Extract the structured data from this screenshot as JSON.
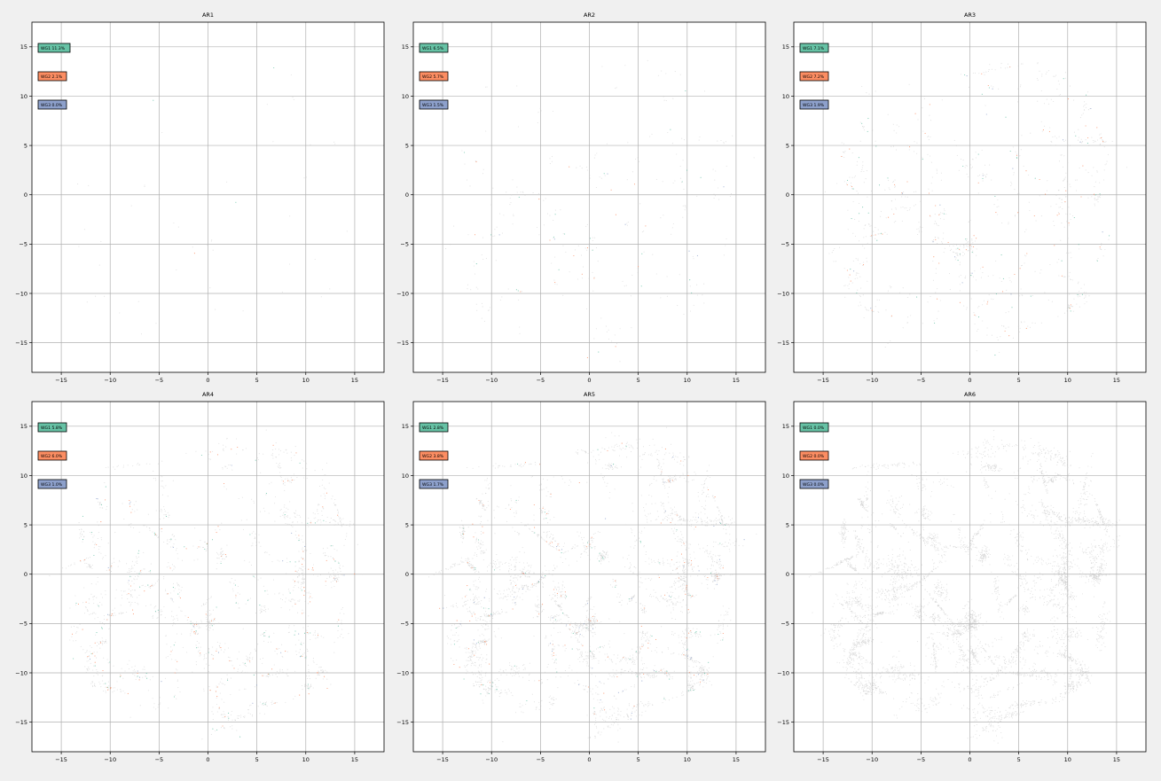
{
  "chart_data": [
    {
      "type": "scatter",
      "title": "AR1",
      "xlim": [
        -18,
        18
      ],
      "ylim": [
        -18,
        17.5
      ],
      "xticks": [
        -15,
        -10,
        -5,
        0,
        5,
        10,
        15
      ],
      "yticks": [
        -15,
        -10,
        -5,
        0,
        5,
        10,
        15
      ],
      "grid": true,
      "density": 0.01,
      "legend": [
        {
          "label": "WG1 11.3%",
          "color": "#66c2a5"
        },
        {
          "label": "WG2 2.1%",
          "color": "#fc8d62"
        },
        {
          "label": "WG3 0.0%",
          "color": "#8da0cb"
        }
      ],
      "series": [
        {
          "label": "WG1",
          "color": "#66c2a5",
          "fraction": 0.113
        },
        {
          "label": "WG2",
          "color": "#fc8d62",
          "fraction": 0.021
        },
        {
          "label": "WG3",
          "color": "#8da0cb",
          "fraction": 0.0
        }
      ]
    },
    {
      "type": "scatter",
      "title": "AR2",
      "xlim": [
        -18,
        18
      ],
      "ylim": [
        -18,
        17.5
      ],
      "xticks": [
        -15,
        -10,
        -5,
        0,
        5,
        10,
        15
      ],
      "yticks": [
        -15,
        -10,
        -5,
        0,
        5,
        10,
        15
      ],
      "grid": true,
      "density": 0.06,
      "legend": [
        {
          "label": "WG1 6.5%",
          "color": "#66c2a5"
        },
        {
          "label": "WG2 5.7%",
          "color": "#fc8d62"
        },
        {
          "label": "WG3 1.5%",
          "color": "#8da0cb"
        }
      ],
      "series": [
        {
          "label": "WG1",
          "color": "#66c2a5",
          "fraction": 0.065
        },
        {
          "label": "WG2",
          "color": "#fc8d62",
          "fraction": 0.057
        },
        {
          "label": "WG3",
          "color": "#8da0cb",
          "fraction": 0.015
        }
      ]
    },
    {
      "type": "scatter",
      "title": "AR3",
      "xlim": [
        -18,
        18
      ],
      "ylim": [
        -18,
        17.5
      ],
      "xticks": [
        -15,
        -10,
        -5,
        0,
        5,
        10,
        15
      ],
      "yticks": [
        -15,
        -10,
        -5,
        0,
        5,
        10,
        15
      ],
      "grid": true,
      "density": 0.18,
      "legend": [
        {
          "label": "WG1 7.1%",
          "color": "#66c2a5"
        },
        {
          "label": "WG2 7.2%",
          "color": "#fc8d62"
        },
        {
          "label": "WG3 1.9%",
          "color": "#8da0cb"
        }
      ],
      "series": [
        {
          "label": "WG1",
          "color": "#66c2a5",
          "fraction": 0.071
        },
        {
          "label": "WG2",
          "color": "#fc8d62",
          "fraction": 0.072
        },
        {
          "label": "WG3",
          "color": "#8da0cb",
          "fraction": 0.019
        }
      ]
    },
    {
      "type": "scatter",
      "title": "AR4",
      "xlim": [
        -18,
        18
      ],
      "ylim": [
        -18,
        17.5
      ],
      "xticks": [
        -15,
        -10,
        -5,
        0,
        5,
        10,
        15
      ],
      "yticks": [
        -15,
        -10,
        -5,
        0,
        5,
        10,
        15
      ],
      "grid": true,
      "density": 0.35,
      "legend": [
        {
          "label": "WG1 5.8%",
          "color": "#66c2a5"
        },
        {
          "label": "WG2 6.0%",
          "color": "#fc8d62"
        },
        {
          "label": "WG3 1.0%",
          "color": "#8da0cb"
        }
      ],
      "series": [
        {
          "label": "WG1",
          "color": "#66c2a5",
          "fraction": 0.058
        },
        {
          "label": "WG2",
          "color": "#fc8d62",
          "fraction": 0.06
        },
        {
          "label": "WG3",
          "color": "#8da0cb",
          "fraction": 0.01
        }
      ]
    },
    {
      "type": "scatter",
      "title": "AR5",
      "xlim": [
        -18,
        18
      ],
      "ylim": [
        -18,
        17.5
      ],
      "xticks": [
        -15,
        -10,
        -5,
        0,
        5,
        10,
        15
      ],
      "yticks": [
        -15,
        -10,
        -5,
        0,
        5,
        10,
        15
      ],
      "grid": true,
      "density": 0.65,
      "legend": [
        {
          "label": "WG1 2.8%",
          "color": "#66c2a5"
        },
        {
          "label": "WG2 3.8%",
          "color": "#fc8d62"
        },
        {
          "label": "WG3 1.7%",
          "color": "#8da0cb"
        }
      ],
      "series": [
        {
          "label": "WG1",
          "color": "#66c2a5",
          "fraction": 0.028
        },
        {
          "label": "WG2",
          "color": "#fc8d62",
          "fraction": 0.038
        },
        {
          "label": "WG3",
          "color": "#8da0cb",
          "fraction": 0.017
        }
      ]
    },
    {
      "type": "scatter",
      "title": "AR6",
      "xlim": [
        -18,
        18
      ],
      "ylim": [
        -18,
        17.5
      ],
      "xticks": [
        -15,
        -10,
        -5,
        0,
        5,
        10,
        15
      ],
      "yticks": [
        -15,
        -10,
        -5,
        0,
        5,
        10,
        15
      ],
      "grid": true,
      "density": 1.0,
      "legend": [
        {
          "label": "WG1 0.0%",
          "color": "#66c2a5"
        },
        {
          "label": "WG2 0.0%",
          "color": "#fc8d62"
        },
        {
          "label": "WG3 0.0%",
          "color": "#8da0cb"
        }
      ],
      "series": [
        {
          "label": "WG1",
          "color": "#66c2a5",
          "fraction": 0.0
        },
        {
          "label": "WG2",
          "color": "#fc8d62",
          "fraction": 0.0
        },
        {
          "label": "WG3",
          "color": "#8da0cb",
          "fraction": 0.0
        }
      ]
    }
  ],
  "colors": {
    "background_points": "#c8c8c8",
    "grid": "#b0b0b0",
    "figure_bg": "#f0f0f0"
  }
}
